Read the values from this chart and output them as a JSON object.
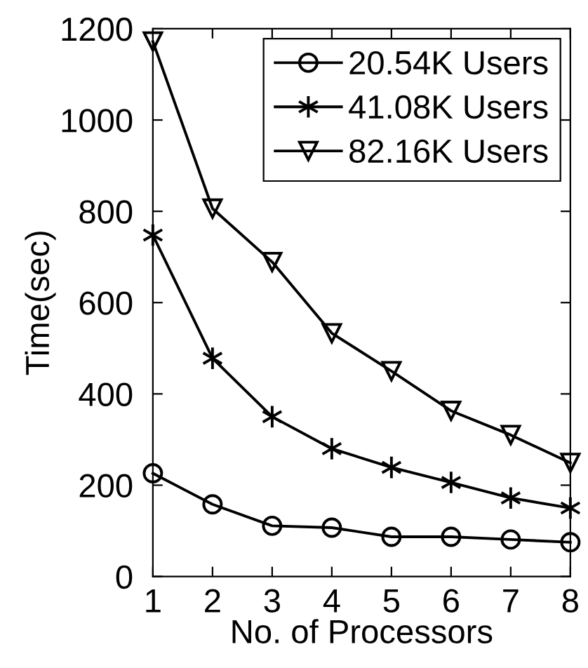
{
  "chart_data": {
    "type": "line",
    "xlabel": "No. of Processors",
    "ylabel": "Time(sec)",
    "x": [
      1,
      2,
      3,
      4,
      5,
      6,
      7,
      8
    ],
    "series": [
      {
        "name": "20.54K Users",
        "color": "#000000",
        "marker": "circle",
        "values": [
          226,
          158,
          111,
          107,
          87,
          87,
          81,
          75
        ]
      },
      {
        "name": "41.08K Users",
        "color": "#000000",
        "marker": "cross",
        "values": [
          748,
          478,
          350,
          280,
          239,
          206,
          172,
          150
        ]
      },
      {
        "name": "82.16K Users",
        "color": "#000000",
        "marker": "triangle",
        "values": [
          1172,
          806,
          689,
          533,
          450,
          363,
          310,
          249
        ]
      }
    ],
    "xlim": [
      1,
      8
    ],
    "xticks": [
      1,
      2,
      3,
      4,
      5,
      6,
      7,
      8
    ],
    "ylim": [
      0,
      1200
    ],
    "yticks": [
      0,
      200,
      400,
      600,
      800,
      1000,
      1200
    ],
    "grid": false,
    "legend": "top right",
    "line_style": "solid"
  }
}
